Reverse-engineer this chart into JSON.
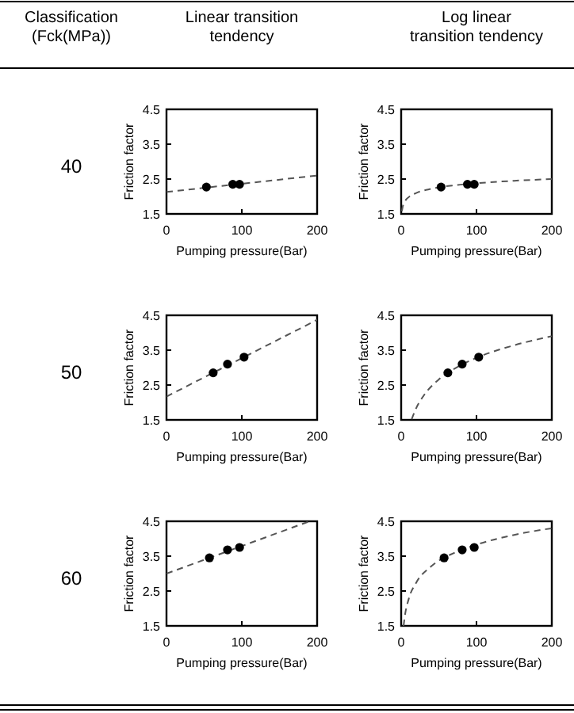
{
  "chart_data": [
    {
      "type": "other",
      "title": "Classification (Fck(MPa))",
      "annotations": [
        "40",
        "50",
        "60"
      ]
    },
    {
      "type": "scatter",
      "title": "Linear transition tendency",
      "xlabel": "Pumping pressure(Bar)",
      "ylabel": "Friction factor",
      "xlim": [
        0,
        200
      ],
      "ylim": [
        1.5,
        4.5
      ],
      "xticks": [
        0,
        100,
        200
      ],
      "yticks": [
        1.5,
        2.5,
        3.5,
        4.5
      ],
      "series": [
        {
          "type": "line",
          "color": "#555555",
          "line_style": "dashed",
          "marker": "none",
          "x": [
            0,
            200
          ],
          "values": [
            2.13,
            2.6
          ]
        },
        {
          "type": "scatter",
          "color": "#000000",
          "marker": "circle",
          "x": [
            53,
            88,
            97
          ],
          "values": [
            2.27,
            2.35,
            2.35
          ]
        }
      ]
    },
    {
      "type": "scatter",
      "title": "Log linear transition tendency",
      "xlabel": "Pumping pressure(Bar)",
      "ylabel": "Friction factor",
      "xlim": [
        0,
        200
      ],
      "ylim": [
        1.5,
        4.5
      ],
      "xticks": [
        0,
        100,
        200
      ],
      "yticks": [
        1.5,
        2.5,
        3.5,
        4.5
      ],
      "series": [
        {
          "type": "line",
          "color": "#555555",
          "line_style": "dashed",
          "marker": "none",
          "x": [
            1,
            2,
            5,
            10,
            20,
            40,
            70,
            100,
            150,
            200
          ],
          "values": [
            1.58,
            1.7,
            1.86,
            1.98,
            2.1,
            2.22,
            2.32,
            2.38,
            2.45,
            2.5
          ]
        },
        {
          "type": "scatter",
          "color": "#000000",
          "marker": "circle",
          "x": [
            53,
            88,
            97
          ],
          "values": [
            2.27,
            2.35,
            2.35
          ]
        }
      ]
    },
    {
      "type": "scatter",
      "xlabel": "Pumping pressure(Bar)",
      "ylabel": "Friction factor",
      "xlim": [
        0,
        200
      ],
      "ylim": [
        1.5,
        4.5
      ],
      "xticks": [
        0,
        100,
        200
      ],
      "yticks": [
        1.5,
        2.5,
        3.5,
        4.5
      ],
      "series": [
        {
          "type": "line",
          "color": "#555555",
          "line_style": "dashed",
          "marker": "none",
          "x": [
            0,
            200
          ],
          "values": [
            2.17,
            4.37
          ]
        },
        {
          "type": "scatter",
          "color": "#000000",
          "marker": "circle",
          "x": [
            62,
            81,
            103
          ],
          "values": [
            2.85,
            3.1,
            3.3
          ]
        }
      ]
    },
    {
      "type": "scatter",
      "xlabel": "Pumping pressure(Bar)",
      "ylabel": "Friction factor",
      "xlim": [
        0,
        200
      ],
      "ylim": [
        1.5,
        4.5
      ],
      "xticks": [
        0,
        100,
        200
      ],
      "yticks": [
        1.5,
        2.5,
        3.5,
        4.5
      ],
      "series": [
        {
          "type": "line",
          "color": "#555555",
          "line_style": "dashed",
          "marker": "none",
          "x": [
            14,
            20,
            30,
            50,
            75,
            100,
            150,
            200
          ],
          "values": [
            1.52,
            1.84,
            2.2,
            2.66,
            3.02,
            3.28,
            3.64,
            3.9
          ]
        },
        {
          "type": "scatter",
          "color": "#000000",
          "marker": "circle",
          "x": [
            62,
            81,
            103
          ],
          "values": [
            2.85,
            3.1,
            3.3
          ]
        }
      ]
    },
    {
      "type": "scatter",
      "xlabel": "Pumping pressure(Bar)",
      "ylabel": "Friction factor",
      "xlim": [
        0,
        200
      ],
      "ylim": [
        1.5,
        4.5
      ],
      "xticks": [
        0,
        100,
        200
      ],
      "yticks": [
        1.5,
        2.5,
        3.5,
        4.5
      ],
      "series": [
        {
          "type": "line",
          "color": "#555555",
          "line_style": "dashed",
          "marker": "none",
          "x": [
            0,
            190
          ],
          "values": [
            3.0,
            4.5
          ]
        },
        {
          "type": "scatter",
          "color": "#000000",
          "marker": "circle",
          "x": [
            57,
            81,
            97
          ],
          "values": [
            3.45,
            3.68,
            3.75
          ]
        }
      ]
    },
    {
      "type": "scatter",
      "xlabel": "Pumping pressure(Bar)",
      "ylabel": "Friction factor",
      "xlim": [
        0,
        200
      ],
      "ylim": [
        1.5,
        4.5
      ],
      "xticks": [
        0,
        100,
        200
      ],
      "yticks": [
        1.5,
        2.5,
        3.5,
        4.5
      ],
      "series": [
        {
          "type": "line",
          "color": "#555555",
          "line_style": "dashed",
          "marker": "none",
          "x": [
            3.2,
            5,
            10,
            20,
            40,
            70,
            100,
            150,
            200
          ],
          "values": [
            1.5,
            1.8,
            2.27,
            2.74,
            3.21,
            3.59,
            3.83,
            4.11,
            4.3
          ]
        },
        {
          "type": "scatter",
          "color": "#000000",
          "marker": "circle",
          "x": [
            57,
            81,
            97
          ],
          "values": [
            3.45,
            3.68,
            3.75
          ]
        }
      ]
    }
  ]
}
